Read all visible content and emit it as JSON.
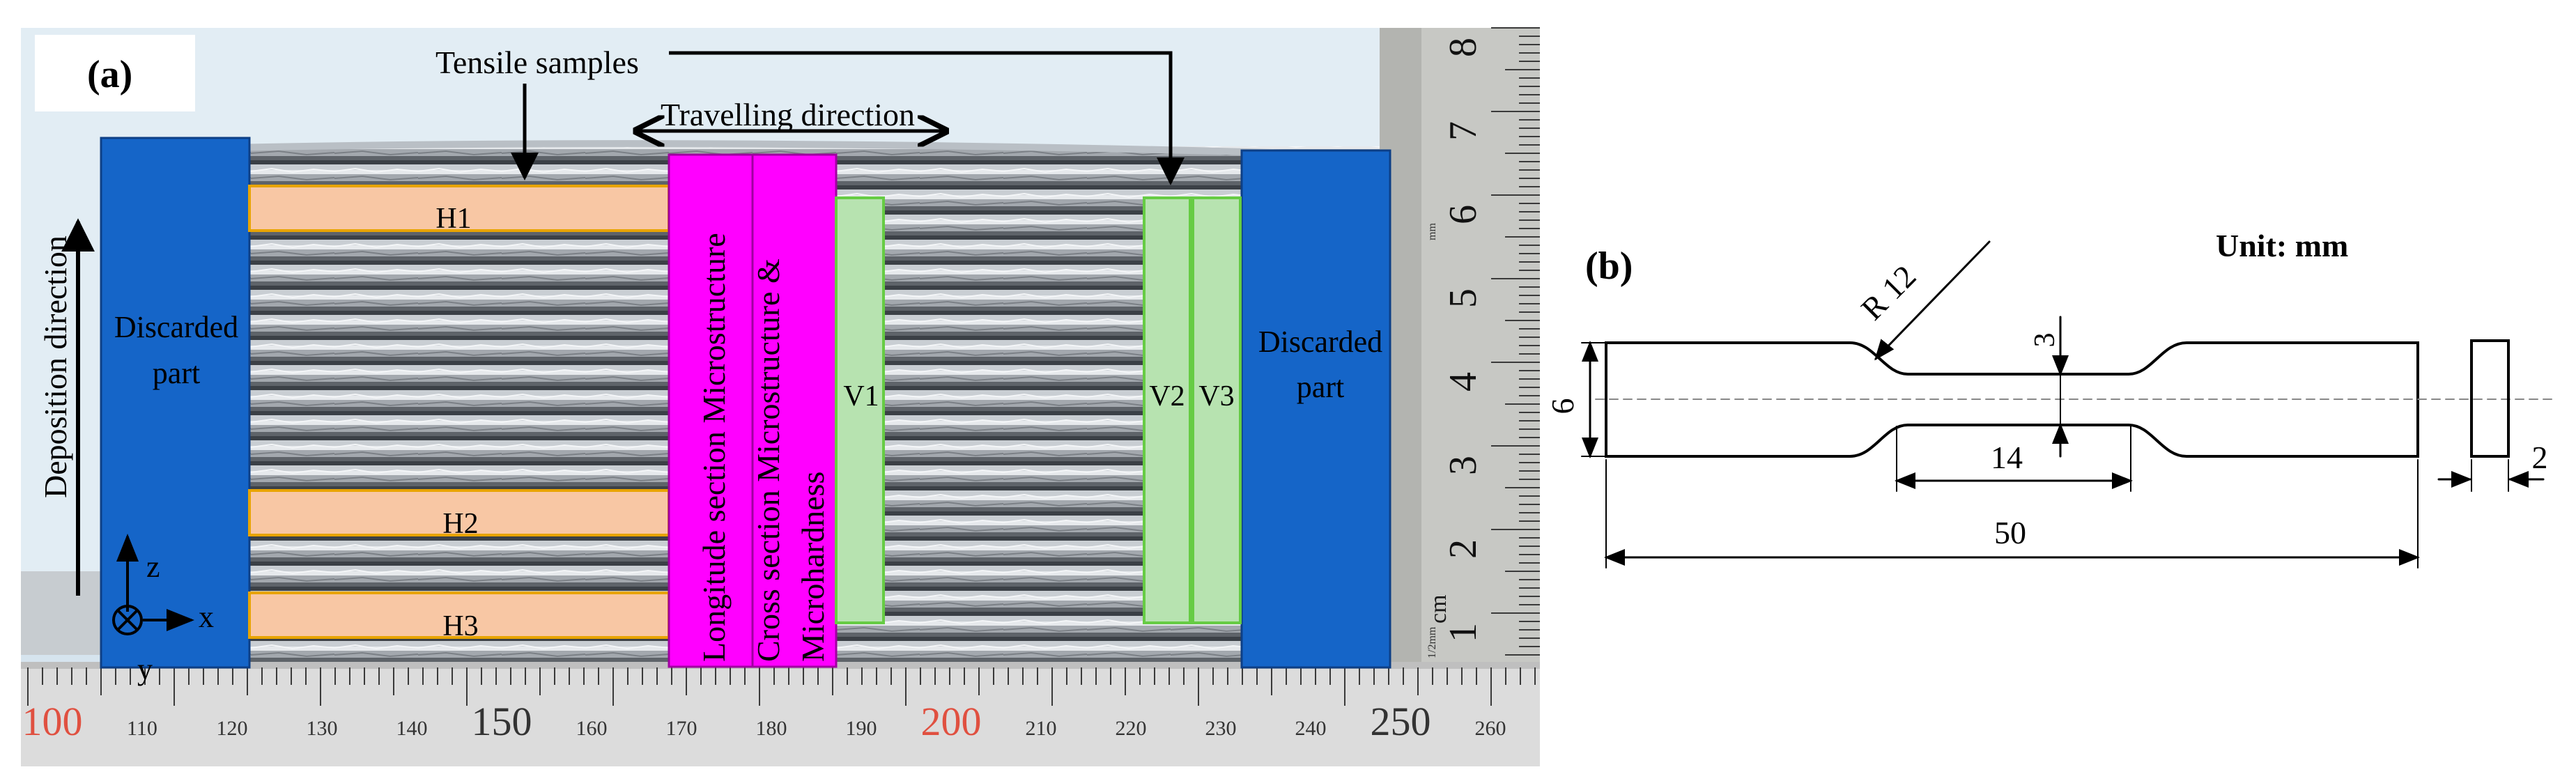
{
  "panel_a": {
    "label": "(a)",
    "tensile_label": "Tensile samples",
    "travel_label": "Travelling direction",
    "deposition_label": "Deposition direction",
    "discarded_left": [
      "Discarded",
      "part"
    ],
    "discarded_right": [
      "Discarded",
      "part"
    ],
    "horizontal_samples": [
      "H1",
      "H2",
      "H3"
    ],
    "vertical_samples": [
      "V1",
      "V2",
      "V3"
    ],
    "longitude_label": "Longitude  section Microstructure",
    "cross_label": "Cross section Microstructure &",
    "microhardness_label": "Microhardness",
    "axes": {
      "z": "z",
      "x": "x",
      "y": "y"
    },
    "ruler_right": [
      "8",
      "7",
      "6",
      "5",
      "4",
      "3",
      "2",
      "1"
    ],
    "ruler_right_unit": "cm",
    "ruler_right_small": [
      "mm",
      "1/2mm"
    ],
    "ruler_bottom": [
      "100",
      "110",
      "120",
      "130",
      "140",
      "150",
      "160",
      "170",
      "180",
      "190",
      "200",
      "210",
      "220",
      "230",
      "240",
      "250",
      "260"
    ],
    "colors": {
      "discarded": "#1565c8",
      "horizontal": "#f8c7a4",
      "horizontal_border": "#e8a400",
      "vertical": "#b7e3b0",
      "vertical_border": "#66cc44",
      "magenta": "#ff00ff"
    }
  },
  "panel_b": {
    "label": "(b)",
    "unit": "Unit: mm",
    "radius": "R 12",
    "dim_6": "6",
    "dim_3": "3",
    "dim_14": "14",
    "dim_50": "50",
    "dim_2": "2"
  }
}
